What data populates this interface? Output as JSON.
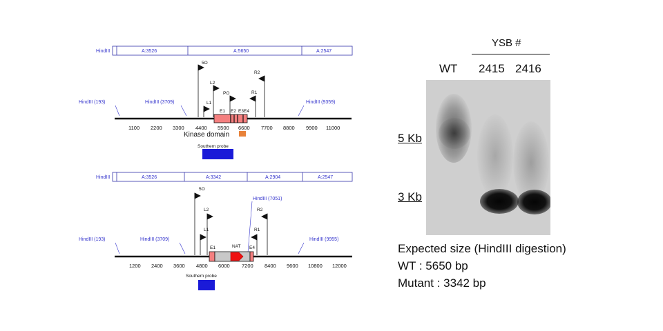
{
  "construct_wt": {
    "frag_label": "HindIII",
    "fragments": [
      "A:3526",
      "A:5650",
      "A:2547"
    ],
    "sites": [
      "HindIII (193)",
      "HindIII (3709)",
      "HindIII (9359)"
    ],
    "primers": [
      "5O",
      "L2",
      "PO",
      "R2",
      "R1",
      "L1"
    ],
    "exons": [
      "E1",
      "E2",
      "E3",
      "E4"
    ],
    "ticks": [
      "1100",
      "2200",
      "3300",
      "4400",
      "5500",
      "6600",
      "7700",
      "8800",
      "9900",
      "11000"
    ],
    "kinase_label": "Kinase domain",
    "probe_label": "Southern probe"
  },
  "construct_mut": {
    "frag_label": "HindIII",
    "fragments": [
      "A:3526",
      "A:3342",
      "A:2904",
      "A:2547"
    ],
    "sites": [
      "HindIII (193)",
      "HindIII (3709)",
      "HindIII (7051)",
      "HindIII (9955)"
    ],
    "primers": [
      "5O",
      "L2",
      "L1",
      "R2",
      "R1"
    ],
    "exons": [
      "E1",
      "E4"
    ],
    "marker_label": "NAT",
    "ticks": [
      "1200",
      "2400",
      "3600",
      "4800",
      "6000",
      "7200",
      "8400",
      "9600",
      "10800",
      "12000"
    ],
    "probe_label": "Southern probe"
  },
  "gel": {
    "group_label": "YSB #",
    "lanes": [
      "WT",
      "2415",
      "2416"
    ],
    "markers": [
      "5 Kb",
      "3 Kb"
    ]
  },
  "caption": {
    "line1": "Expected size (HindIII digestion)",
    "line2": "WT : 5650 bp",
    "line3": "Mutant : 3342 bp"
  }
}
